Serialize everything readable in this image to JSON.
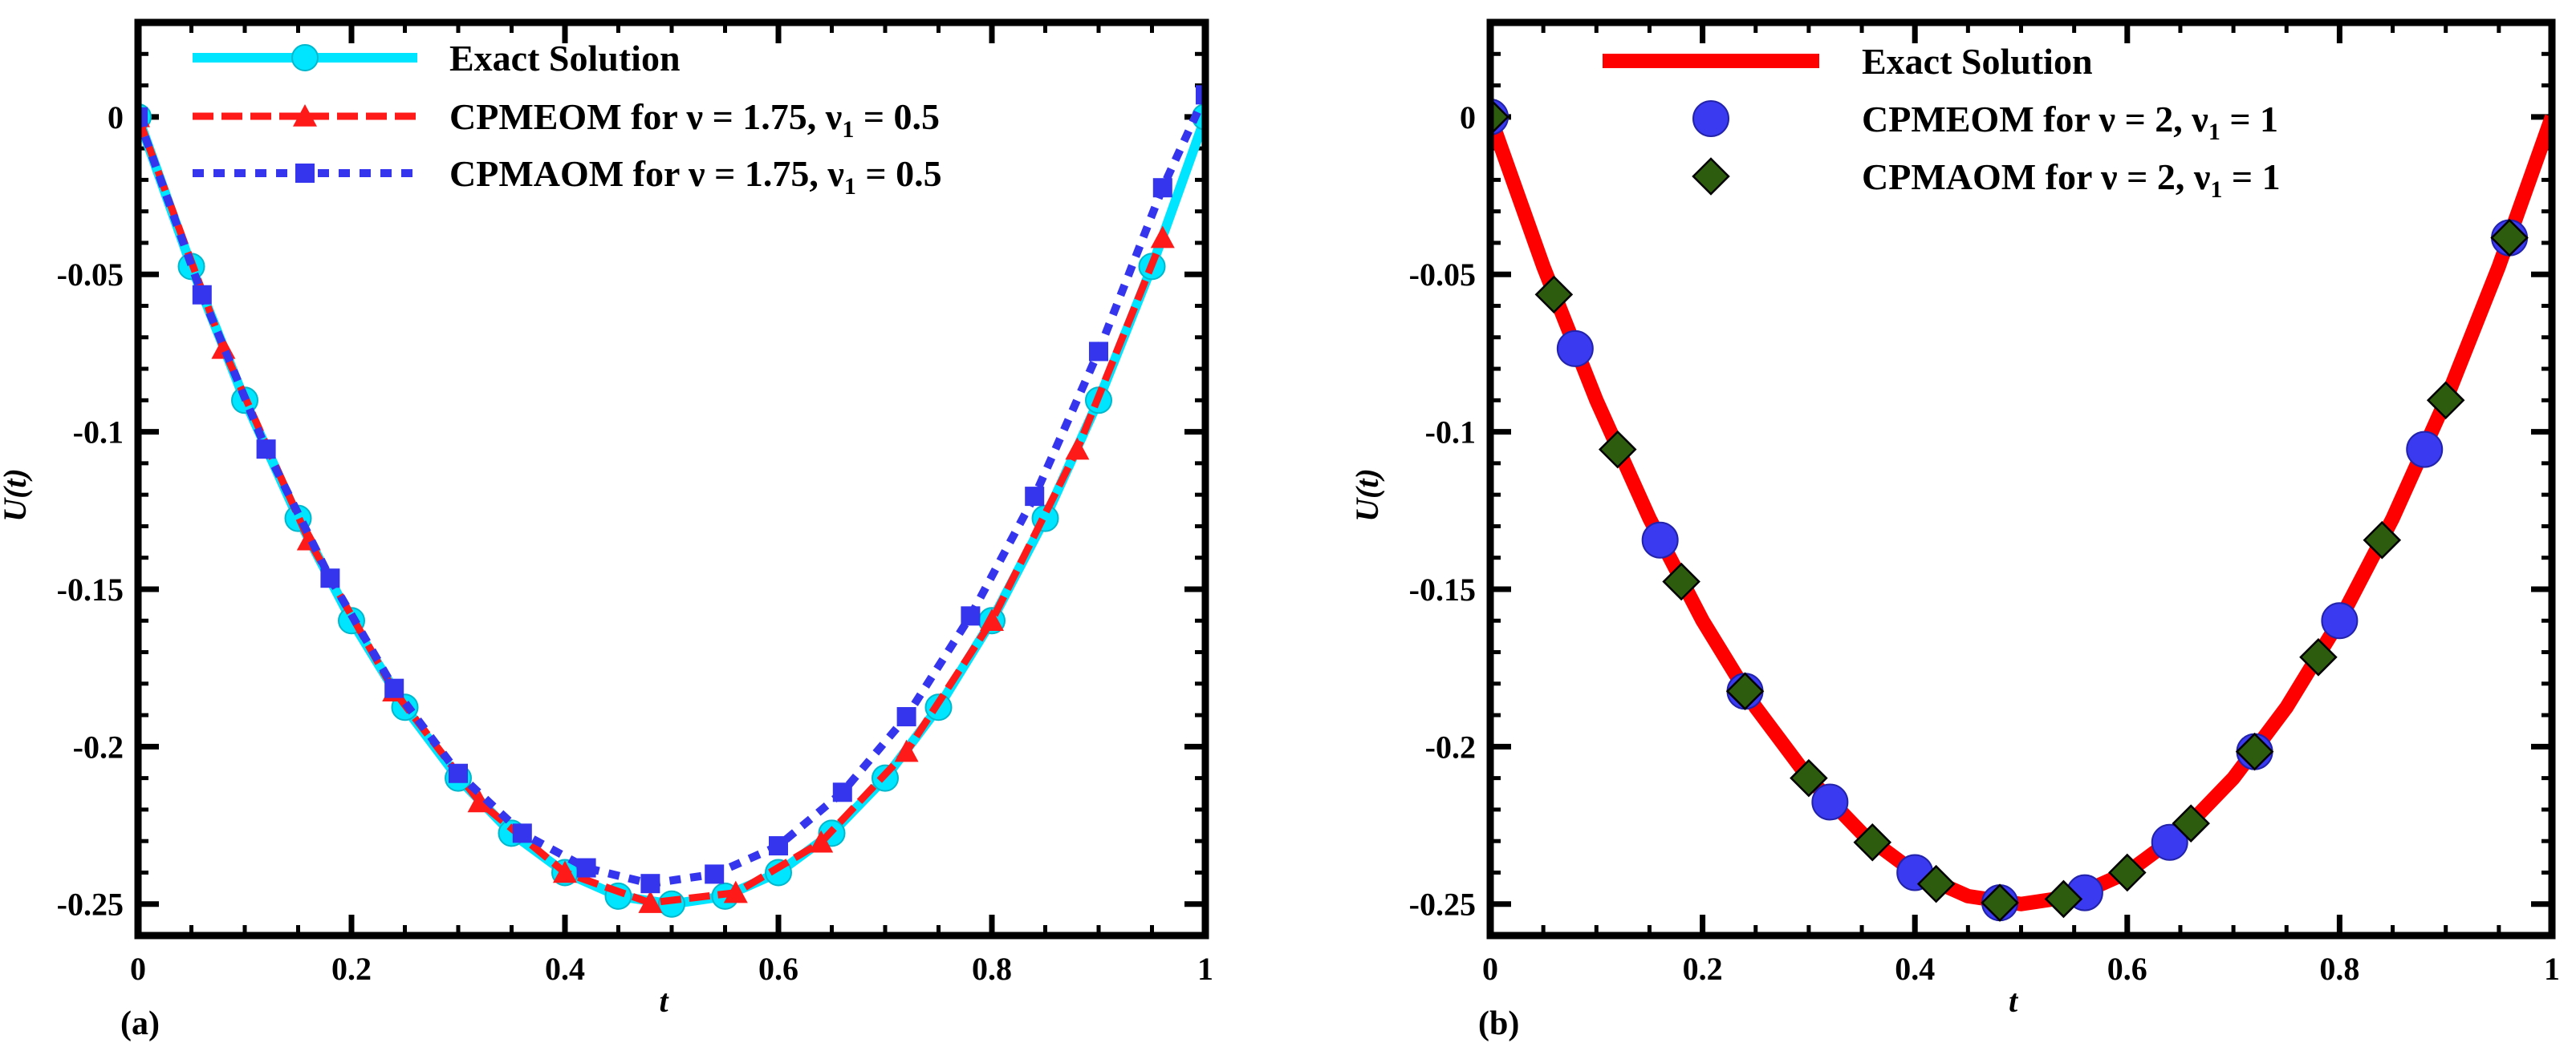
{
  "chart_data": [
    {
      "type": "line",
      "panel_label": "(a)",
      "xlabel": "t",
      "ylabel": "U(t)",
      "xlim": [
        0,
        1
      ],
      "ylim": [
        -0.26,
        0.03
      ],
      "xticks": [
        0,
        0.2,
        0.4,
        0.6,
        0.8,
        1
      ],
      "xtick_labels": [
        "0",
        "0.2",
        "0.4",
        "0.6",
        "0.8",
        "1"
      ],
      "yticks": [
        0,
        -0.05,
        -0.1,
        -0.15,
        -0.2,
        -0.25
      ],
      "ytick_labels": [
        "0",
        "-0.05",
        "-0.1",
        "-0.15",
        "-0.2",
        "-0.25"
      ],
      "legend_position": "top",
      "series": [
        {
          "name": "Exact Solution",
          "legend": [
            "Exact Solution"
          ],
          "color": "#00e5ff",
          "line": "solid",
          "marker": "circle",
          "x": [
            0,
            0.05,
            0.1,
            0.15,
            0.2,
            0.25,
            0.3,
            0.35,
            0.4,
            0.45,
            0.5,
            0.55,
            0.6,
            0.65,
            0.7,
            0.75,
            0.8,
            0.85,
            0.9,
            0.95,
            1
          ],
          "y": [
            0,
            -0.0475,
            -0.09,
            -0.1275,
            -0.16,
            -0.1875,
            -0.21,
            -0.2275,
            -0.24,
            -0.2475,
            -0.25,
            -0.2475,
            -0.24,
            -0.2275,
            -0.21,
            -0.1875,
            -0.16,
            -0.1275,
            -0.09,
            -0.0475,
            0
          ]
        },
        {
          "name": "CPMEOM for ν = 1.75, ν1 = 0.5",
          "legend": [
            "CPMEOM for ν = 1.75, ν",
            "1",
            " = 0.5"
          ],
          "color": "#ff1a1a",
          "line": "dash",
          "marker": "triangle",
          "x": [
            0,
            0.08,
            0.16,
            0.24,
            0.32,
            0.4,
            0.48,
            0.56,
            0.64,
            0.72,
            0.8,
            0.88,
            0.96
          ],
          "y": [
            0,
            -0.0736,
            -0.1344,
            -0.1824,
            -0.2176,
            -0.24,
            -0.2496,
            -0.2464,
            -0.2304,
            -0.2016,
            -0.16,
            -0.1056,
            -0.0384
          ]
        },
        {
          "name": "CPMAOM for ν = 1.75, ν1 = 0.5",
          "legend": [
            "CPMAOM for ν = 1.75, ν",
            "1",
            " = 0.5"
          ],
          "color": "#3535ee",
          "line": "dot",
          "marker": "square",
          "x": [
            0,
            0.06,
            0.12,
            0.18,
            0.24,
            0.3,
            0.36,
            0.42,
            0.48,
            0.54,
            0.6,
            0.66,
            0.72,
            0.78,
            0.84,
            0.9,
            0.96,
            1
          ],
          "y": [
            0,
            -0.0565,
            -0.1055,
            -0.1465,
            -0.1815,
            -0.2085,
            -0.2275,
            -0.2385,
            -0.2435,
            -0.2405,
            -0.2315,
            -0.2145,
            -0.1905,
            -0.1585,
            -0.1205,
            -0.0745,
            -0.0225,
            0.007
          ]
        }
      ]
    },
    {
      "type": "line",
      "panel_label": "(b)",
      "xlabel": "t",
      "ylabel": "U(t)",
      "xlim": [
        0,
        1
      ],
      "ylim": [
        -0.26,
        0.03
      ],
      "xticks": [
        0,
        0.2,
        0.4,
        0.6,
        0.8,
        1
      ],
      "xtick_labels": [
        "0",
        "0.2",
        "0.4",
        "0.6",
        "0.8",
        "1"
      ],
      "yticks": [
        0,
        -0.05,
        -0.1,
        -0.15,
        -0.2,
        -0.25
      ],
      "ytick_labels": [
        "0",
        "-0.05",
        "-0.1",
        "-0.15",
        "-0.2",
        "-0.25"
      ],
      "legend_position": "top",
      "series": [
        {
          "name": "Exact Solution",
          "legend": [
            "Exact Solution"
          ],
          "color": "#ff0000",
          "line": "solid-thick",
          "marker": "none",
          "x": [
            0,
            0.05,
            0.1,
            0.15,
            0.2,
            0.25,
            0.3,
            0.35,
            0.4,
            0.45,
            0.5,
            0.55,
            0.6,
            0.65,
            0.7,
            0.75,
            0.8,
            0.85,
            0.9,
            0.95,
            1
          ],
          "y": [
            0,
            -0.0475,
            -0.09,
            -0.1275,
            -0.16,
            -0.1875,
            -0.21,
            -0.2275,
            -0.24,
            -0.2475,
            -0.25,
            -0.2475,
            -0.24,
            -0.2275,
            -0.21,
            -0.1875,
            -0.16,
            -0.1275,
            -0.09,
            -0.0475,
            0
          ]
        },
        {
          "name": "CPMEOM for ν = 2, ν1 = 1",
          "legend": [
            "CPMEOM for ν = 2, ν",
            "1",
            " = 1"
          ],
          "color": "#3a3af0",
          "line": "none",
          "marker": "circle-large",
          "x": [
            0,
            0.08,
            0.16,
            0.24,
            0.32,
            0.4,
            0.48,
            0.56,
            0.64,
            0.72,
            0.8,
            0.88,
            0.96
          ],
          "y": [
            0,
            -0.0736,
            -0.1344,
            -0.1824,
            -0.2176,
            -0.24,
            -0.2496,
            -0.2464,
            -0.2304,
            -0.2016,
            -0.16,
            -0.1056,
            -0.0384
          ]
        },
        {
          "name": "CPMAOM for ν = 2, ν1 = 1",
          "legend": [
            "CPMAOM for ν = 2, ν",
            "1",
            " = 1"
          ],
          "color": "#2e5c0e",
          "line": "none",
          "marker": "diamond",
          "x": [
            0,
            0.06,
            0.12,
            0.18,
            0.24,
            0.3,
            0.36,
            0.42,
            0.48,
            0.54,
            0.6,
            0.66,
            0.72,
            0.78,
            0.84,
            0.9,
            0.96
          ],
          "y": [
            0,
            -0.0564,
            -0.1056,
            -0.1476,
            -0.1824,
            -0.21,
            -0.2304,
            -0.2436,
            -0.2496,
            -0.2484,
            -0.24,
            -0.2244,
            -0.2016,
            -0.1716,
            -0.1344,
            -0.09,
            -0.0384
          ]
        }
      ]
    }
  ]
}
